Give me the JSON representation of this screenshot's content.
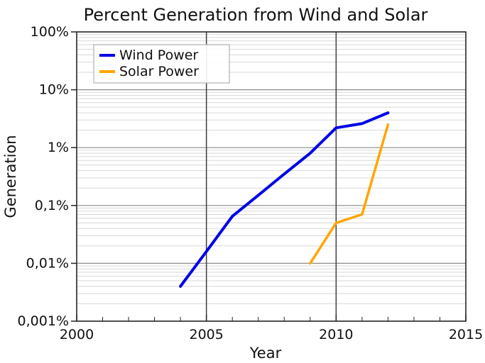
{
  "chart_data": {
    "type": "line",
    "title": "Percent Generation from Wind and Solar",
    "xlabel": "Year",
    "ylabel": "Generation",
    "x_range": [
      2000,
      2015
    ],
    "y_scale": "log",
    "y_range_percent": [
      0.001,
      100
    ],
    "grid": {
      "horizontal_major": true,
      "horizontal_log_minor": true,
      "vertical_major_years": [
        2005,
        2010
      ]
    },
    "xticks": {
      "values": [
        2000,
        2005,
        2010,
        2015
      ],
      "labels": [
        "2000",
        "2005",
        "2010",
        "2015"
      ],
      "minor_years": [
        2001,
        2002,
        2003,
        2004,
        2006,
        2007,
        2008,
        2009,
        2011,
        2012,
        2013,
        2014
      ]
    },
    "yticks": {
      "values": [
        100,
        10,
        1,
        0.1,
        0.01,
        0.001
      ],
      "labels": [
        "100%",
        "10%",
        "1%",
        "0,1%",
        "0,01%",
        "0,001%"
      ]
    },
    "legend": {
      "position": "upper-left",
      "entries": [
        "Wind Power",
        "Solar Power"
      ]
    },
    "series": [
      {
        "name": "Wind Power",
        "color": "#0000e8",
        "x": [
          2004,
          2005,
          2006,
          2007,
          2008,
          2009,
          2010,
          2011,
          2012
        ],
        "y_percent": [
          0.004,
          0.016,
          0.065,
          0.15,
          0.35,
          0.8,
          2.2,
          2.6,
          4.0
        ]
      },
      {
        "name": "Solar Power",
        "color": "#ffa500",
        "x": [
          2009,
          2010,
          2011,
          2012
        ],
        "y_percent": [
          0.01,
          0.05,
          0.07,
          2.5
        ]
      }
    ],
    "colors": {
      "wind": "#0000e8",
      "solar": "#ffa500",
      "spine": "#262626",
      "grid_major": "#8a8a8a",
      "grid_vertical": "#404040",
      "grid_minor": "#d8d8d8",
      "text": "#111111",
      "legend_border": "#b0b0b0"
    }
  }
}
